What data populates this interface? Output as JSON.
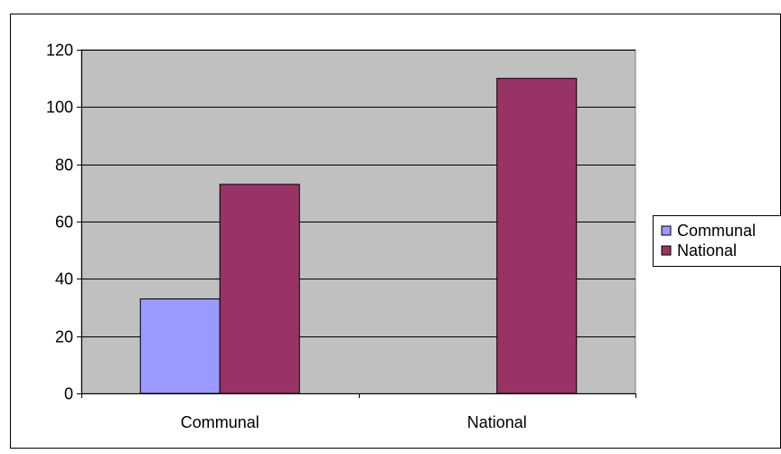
{
  "chart_data": {
    "type": "bar",
    "categories": [
      "Communal",
      "National"
    ],
    "series": [
      {
        "name": "Communal",
        "values": [
          33,
          0
        ],
        "color": "#9999FF"
      },
      {
        "name": "National",
        "values": [
          73,
          110
        ],
        "color": "#993366"
      }
    ],
    "ylim": [
      0,
      120
    ],
    "yticks": [
      0,
      20,
      40,
      60,
      80,
      100,
      120
    ],
    "ytick_labels": [
      "0",
      "20",
      "40",
      "60",
      "80",
      "100",
      "120"
    ],
    "grid": true,
    "legend_position": "right",
    "plot_background": "#C0C0C0"
  }
}
